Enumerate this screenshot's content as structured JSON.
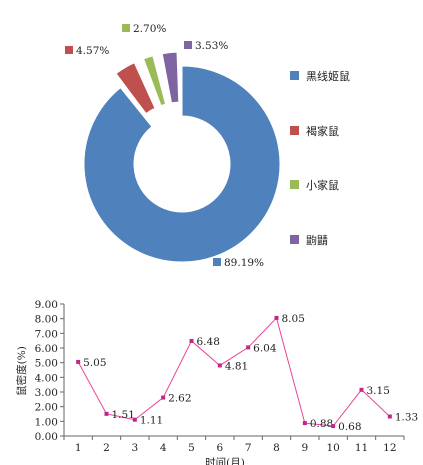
{
  "chart_data": [
    {
      "type": "pie",
      "subtype": "donut",
      "slices": [
        {
          "label": "黑线姬鼠",
          "value": 89.19,
          "value_label": "89.19%",
          "color": "#4f81bd"
        },
        {
          "label": "褐家鼠",
          "value": 4.57,
          "value_label": "4.57%",
          "color": "#c0504d"
        },
        {
          "label": "小家鼠",
          "value": 2.7,
          "value_label": "2.70%",
          "color": "#9bbb59"
        },
        {
          "label": "鼩鼱",
          "value": 3.53,
          "value_label": "3.53%",
          "color": "#8064a2"
        }
      ],
      "legend_position": "right"
    },
    {
      "type": "line",
      "x": [
        1,
        2,
        3,
        4,
        5,
        6,
        7,
        8,
        9,
        10,
        11,
        12
      ],
      "values": [
        5.05,
        1.51,
        1.11,
        2.62,
        6.48,
        4.81,
        6.04,
        8.05,
        0.88,
        0.68,
        3.15,
        1.33
      ],
      "value_labels": [
        "5.05",
        "1.51",
        "1.11",
        "2.62",
        "6.48",
        "4.81",
        "6.04",
        "8.05",
        "0.88",
        "0.68",
        "3.15",
        "1.33"
      ],
      "xlabel": "时间(月)",
      "ylabel": "鼠密度(%)",
      "ylim": [
        0,
        9
      ],
      "yticks": [
        "0.00",
        "1.00",
        "2.00",
        "3.00",
        "4.00",
        "5.00",
        "6.00",
        "7.00",
        "8.00",
        "9.00"
      ],
      "line_color": "#e8439a",
      "marker_color": "#c2258b",
      "grid": false
    }
  ]
}
